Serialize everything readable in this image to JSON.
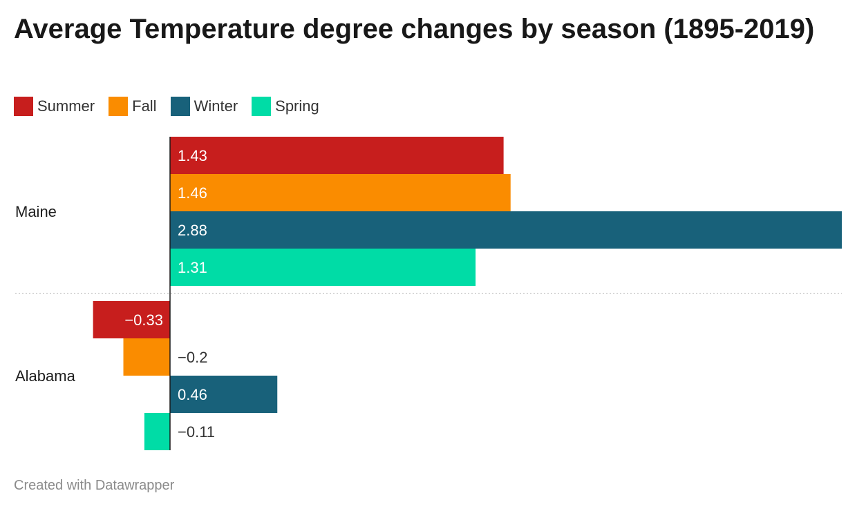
{
  "chart_data": {
    "type": "bar",
    "orientation": "horizontal",
    "title": "Average Temperature degree changes by season (1895-2019)",
    "categories": [
      "Maine",
      "Alabama"
    ],
    "series": [
      {
        "name": "Summer",
        "color": "#c71e1d",
        "values": [
          1.43,
          -0.33
        ],
        "labels": [
          "1.43",
          "−0.33"
        ]
      },
      {
        "name": "Fall",
        "color": "#fa8c00",
        "values": [
          1.46,
          -0.2
        ],
        "labels": [
          "1.46",
          "−0.2"
        ]
      },
      {
        "name": "Winter",
        "color": "#18617a",
        "values": [
          2.88,
          0.46
        ],
        "labels": [
          "2.88",
          "0.46"
        ]
      },
      {
        "name": "Spring",
        "color": "#00dca6",
        "values": [
          1.31,
          -0.11
        ],
        "labels": [
          "1.31",
          "−0.11"
        ]
      }
    ],
    "xlim": [
      -0.33,
      2.88
    ],
    "legend": "top-left",
    "grid": false
  },
  "footer": "Created with Datawrapper"
}
